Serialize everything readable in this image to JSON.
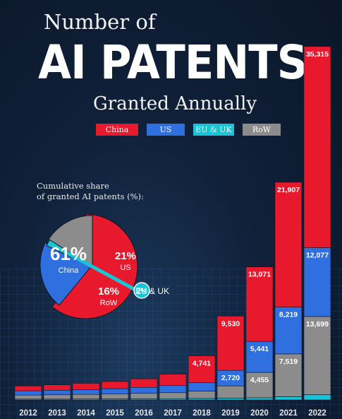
{
  "header": {
    "line1": "Number of",
    "line2": "AI PATENTS",
    "line3": "Granted Annually"
  },
  "legend": [
    {
      "label": "China",
      "color": "#e8192c"
    },
    {
      "label": "US",
      "color": "#2f6fe0"
    },
    {
      "label": "EU & UK",
      "color": "#19c4d6"
    },
    {
      "label": "RoW",
      "color": "#8c8c8c"
    }
  ],
  "pie": {
    "title": "Cumulative share\nof granted AI patents (%):",
    "slices": [
      {
        "name": "China",
        "pct": "61%",
        "value": 61,
        "color": "#e8192c"
      },
      {
        "name": "US",
        "pct": "21%",
        "value": 21,
        "color": "#2f6fe0"
      },
      {
        "name": "EU & UK",
        "pct": "2%",
        "value": 2,
        "color": "#19c4d6"
      },
      {
        "name": "RoW",
        "pct": "16%",
        "value": 16,
        "color": "#8c8c8c"
      }
    ]
  },
  "chart_data": {
    "type": "bar",
    "stacked": true,
    "categories": [
      "2012",
      "2013",
      "2014",
      "2015",
      "2016",
      "2017",
      "2018",
      "2019",
      "2020",
      "2021",
      "2022"
    ],
    "series": [
      {
        "name": "EU & UK",
        "values": [
          150,
          150,
          170,
          180,
          200,
          220,
          260,
          320,
          380,
          560,
          940
        ]
      },
      {
        "name": "RoW",
        "values": [
          700,
          750,
          800,
          850,
          950,
          1050,
          1300,
          2150,
          4455,
          7519,
          13699
        ]
      },
      {
        "name": "US",
        "values": [
          750,
          800,
          850,
          950,
          1050,
          1250,
          1450,
          2720,
          5441,
          8219,
          12077
        ]
      },
      {
        "name": "China",
        "values": [
          850,
          950,
          1100,
          1250,
          1500,
          2000,
          4741,
          9530,
          13071,
          21907,
          35315
        ]
      }
    ],
    "data_labels": {
      "China": [
        "",
        "",
        "",
        "",
        "",
        "",
        "4,741",
        "9,530",
        "13,071",
        "21,907",
        "35,315"
      ],
      "US": [
        "",
        "",
        "",
        "",
        "",
        "",
        "",
        "2,720",
        "5,441",
        "8,219",
        "12,077"
      ],
      "RoW": [
        "",
        "",
        "",
        "",
        "",
        "",
        "",
        "",
        "4,455",
        "7,519",
        "13,699"
      ]
    },
    "legend_position": "top",
    "grid": false
  }
}
